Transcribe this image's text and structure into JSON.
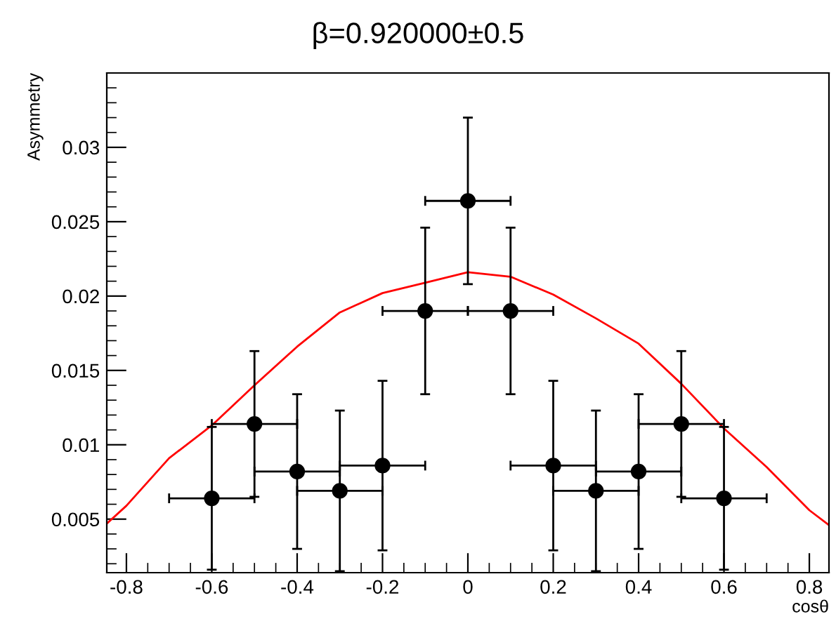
{
  "chart_data": {
    "type": "scatter",
    "title": "β=0.920000±0.5",
    "xlabel": "cosθ",
    "ylabel": "Asymmetry",
    "xlim": [
      -0.846,
      0.846
    ],
    "ylim": [
      0.0014,
      0.035
    ],
    "xticks": [
      -0.8,
      -0.6,
      -0.4,
      -0.2,
      0,
      0.2,
      0.4,
      0.6,
      0.8
    ],
    "yticks": [
      0.005,
      0.01,
      0.015,
      0.02,
      0.025,
      0.03
    ],
    "grid": false,
    "legend": false,
    "series": [
      {
        "color": "#000000",
        "marker": "circle",
        "x": [
          -0.6,
          -0.5,
          -0.4,
          -0.3,
          -0.2,
          -0.1,
          0,
          0.1,
          0.2,
          0.3,
          0.4,
          0.5,
          0.6
        ],
        "values": [
          0.0064,
          0.0114,
          0.0082,
          0.0069,
          0.0086,
          0.019,
          0.0264,
          0.019,
          0.0086,
          0.0069,
          0.0082,
          0.0114,
          0.0064
        ],
        "errors": [
          0.0048,
          0.0049,
          0.0052,
          0.0054,
          0.0057,
          0.0056,
          0.0056,
          0.0056,
          0.0057,
          0.0054,
          0.0052,
          0.0049,
          0.0048
        ],
        "xerrors": [
          0.1,
          0.1,
          0.1,
          0.1,
          0.1,
          0.1,
          0.1,
          0.1,
          0.1,
          0.1,
          0.1,
          0.1,
          0.1
        ]
      },
      {
        "type": "line",
        "color": "#ff0000",
        "marker": "none",
        "x": [
          -0.846,
          -0.8,
          -0.7,
          -0.6,
          -0.5,
          -0.4,
          -0.3,
          -0.2,
          -0.1,
          0,
          0.1,
          0.2,
          0.3,
          0.4,
          0.5,
          0.6,
          0.7,
          0.8,
          0.846
        ],
        "values": [
          0.0047,
          0.0059,
          0.0091,
          0.0113,
          0.014,
          0.0166,
          0.0189,
          0.0202,
          0.0209,
          0.0216,
          0.0213,
          0.0201,
          0.0185,
          0.0168,
          0.0141,
          0.0111,
          0.0085,
          0.0056,
          0.0046
        ]
      }
    ]
  }
}
